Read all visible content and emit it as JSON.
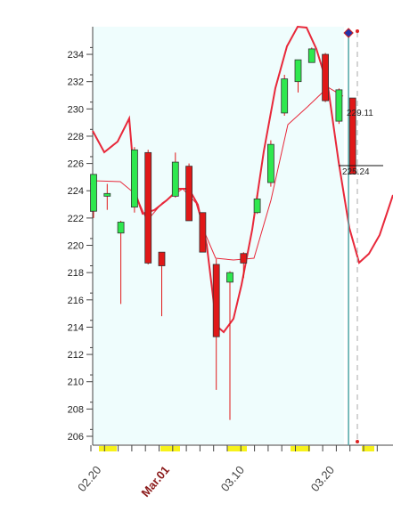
{
  "chart_data": {
    "type": "candlestick",
    "title": "",
    "xlabel": "",
    "ylabel": "",
    "ylim": [
      205,
      235.5
    ],
    "yticks": [
      206,
      208,
      210,
      212,
      214,
      216,
      218,
      220,
      222,
      224,
      226,
      228,
      230,
      232,
      234
    ],
    "x_tick_labels": [
      {
        "label": "02.20",
        "index": 0.6,
        "major": false
      },
      {
        "label": "Mar.01",
        "index": 5.6,
        "major": true
      },
      {
        "label": "03.10",
        "index": 11.1,
        "major": false
      },
      {
        "label": "03.20",
        "index": 17.7,
        "major": false
      }
    ],
    "candles": [
      {
        "open": 222.5,
        "high": 225.2,
        "low": 222.0,
        "close": 225.2,
        "color": "up"
      },
      {
        "open": 223.6,
        "high": 224.5,
        "low": 222.6,
        "close": 223.8,
        "color": "up"
      },
      {
        "open": 220.9,
        "high": 221.8,
        "low": 215.7,
        "close": 221.7,
        "color": "up"
      },
      {
        "open": 222.8,
        "high": 227.2,
        "low": 222.4,
        "close": 227.0,
        "color": "up"
      },
      {
        "open": 226.8,
        "high": 227.0,
        "low": 218.6,
        "close": 218.7,
        "color": "down"
      },
      {
        "open": 219.5,
        "high": 219.5,
        "low": 214.8,
        "close": 218.5,
        "color": "down"
      },
      {
        "open": 223.6,
        "high": 226.8,
        "low": 223.5,
        "close": 226.1,
        "color": "up"
      },
      {
        "open": 225.8,
        "high": 226.0,
        "low": 221.8,
        "close": 221.8,
        "color": "down"
      },
      {
        "open": 222.4,
        "high": 222.4,
        "low": 219.5,
        "close": 219.5,
        "color": "down"
      },
      {
        "open": 218.6,
        "high": 219.0,
        "low": 209.4,
        "close": 213.3,
        "color": "down"
      },
      {
        "open": 217.3,
        "high": 218.1,
        "low": 207.2,
        "close": 218.0,
        "color": "up"
      },
      {
        "open": 218.7,
        "high": 219.5,
        "low": 217.6,
        "close": 219.4,
        "color": "down"
      },
      {
        "open": 222.4,
        "high": 223.7,
        "low": 222.3,
        "close": 223.4,
        "color": "up"
      },
      {
        "open": 224.6,
        "high": 227.7,
        "low": 224.3,
        "close": 227.4,
        "color": "up"
      },
      {
        "open": 229.7,
        "high": 232.5,
        "low": 229.5,
        "close": 232.2,
        "color": "up"
      },
      {
        "open": 232.0,
        "high": 233.6,
        "low": 231.2,
        "close": 233.6,
        "color": "up"
      },
      {
        "open": 233.4,
        "high": 234.5,
        "low": 233.4,
        "close": 234.4,
        "color": "up"
      },
      {
        "open": 234.0,
        "high": 234.1,
        "low": 230.5,
        "close": 230.6,
        "color": "down"
      },
      {
        "open": 229.1,
        "high": 231.5,
        "low": 228.9,
        "close": 231.4,
        "color": "up"
      },
      {
        "open": 230.8,
        "high": 230.8,
        "low": 225.2,
        "close": 225.24,
        "color": "down"
      }
    ],
    "price_labels": [
      "229.11",
      "225.24"
    ],
    "colors": {
      "up": "#2ee84e",
      "down": "#e01818",
      "plot_bg": "#effdfd",
      "line": "#e8283a",
      "cursor": "#4da6a6"
    }
  }
}
